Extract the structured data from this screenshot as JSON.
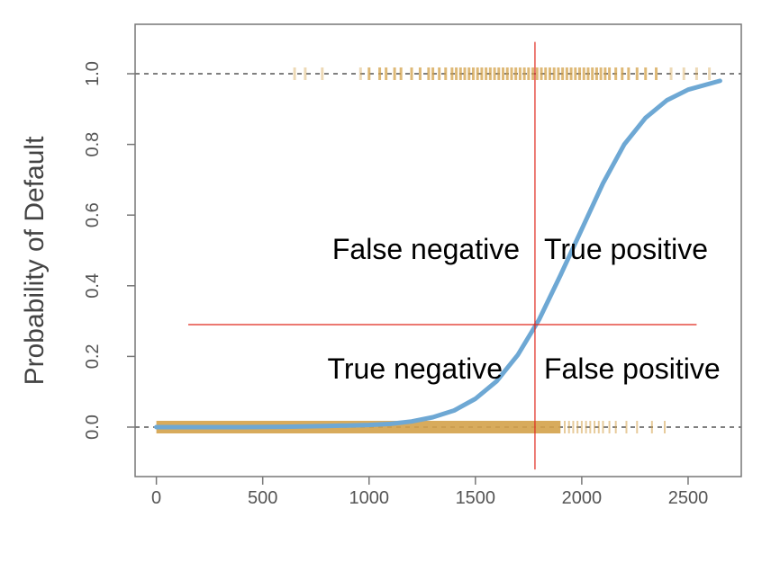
{
  "chart_data": {
    "type": "scatter",
    "title": "",
    "xlabel": "",
    "ylabel": "Probability of Default",
    "xlim": [
      -100,
      2750
    ],
    "ylim": [
      -0.14,
      1.14
    ],
    "x_ticks": [
      0,
      500,
      1000,
      1500,
      2000,
      2500
    ],
    "x_tick_labels": [
      "0",
      "500",
      "1000",
      "1500",
      "2000",
      "2500"
    ],
    "y_ticks": [
      0.0,
      0.2,
      0.4,
      0.6,
      0.8,
      1.0
    ],
    "y_tick_labels": [
      "0.0",
      "0.2",
      "0.4",
      "0.6",
      "0.8",
      "1.0"
    ],
    "reference_lines_y": [
      0,
      1
    ],
    "grid": false,
    "colors": {
      "curve": "#6ea8d4",
      "points": "#d4a24a",
      "threshold": "#e0281c",
      "reference": "#555555",
      "frame": "#777777"
    },
    "curve": {
      "name": "",
      "x": [
        0,
        200,
        400,
        600,
        800,
        1000,
        1100,
        1200,
        1300,
        1400,
        1500,
        1600,
        1700,
        1800,
        1900,
        2000,
        2100,
        2200,
        2300,
        2400,
        2500,
        2650
      ],
      "y": [
        0.0,
        0.0,
        0.0,
        0.001,
        0.003,
        0.006,
        0.009,
        0.016,
        0.028,
        0.047,
        0.08,
        0.13,
        0.205,
        0.305,
        0.43,
        0.56,
        0.69,
        0.8,
        0.875,
        0.925,
        0.955,
        0.98
      ]
    },
    "points_default_yes": {
      "y": 1,
      "x": [
        650,
        700,
        780,
        960,
        1000,
        1050,
        1080,
        1120,
        1150,
        1200,
        1240,
        1280,
        1300,
        1330,
        1360,
        1390,
        1410,
        1430,
        1450,
        1470,
        1490,
        1510,
        1530,
        1550,
        1570,
        1590,
        1610,
        1630,
        1650,
        1670,
        1690,
        1710,
        1730,
        1750,
        1770,
        1790,
        1810,
        1830,
        1850,
        1870,
        1890,
        1910,
        1930,
        1950,
        1970,
        1990,
        2010,
        2030,
        2050,
        2070,
        2090,
        2110,
        2130,
        2160,
        2190,
        2220,
        2260,
        2300,
        2350,
        2420,
        2480,
        2540,
        2600
      ]
    },
    "points_default_no": {
      "y": 0,
      "x_dense_range": [
        0,
        1900
      ],
      "x": [
        1920,
        1940,
        1960,
        1980,
        2000,
        2020,
        2040,
        2060,
        2080,
        2100,
        2130,
        2160,
        2210,
        2260,
        2330,
        2390
      ]
    },
    "thresholds": {
      "x": 1780,
      "x_span": [
        1780,
        1780
      ],
      "x_y_span": [
        -0.12,
        1.09
      ],
      "y": 0.29,
      "y_x_span": [
        150,
        2540
      ]
    },
    "annotations": [
      {
        "id": "fn",
        "text": "False negative",
        "quadrant": "top-left"
      },
      {
        "id": "tp",
        "text": "True positive",
        "quadrant": "top-right"
      },
      {
        "id": "tn",
        "text": "True negative",
        "quadrant": "bottom-left"
      },
      {
        "id": "fp",
        "text": "False positive",
        "quadrant": "bottom-right"
      }
    ]
  }
}
